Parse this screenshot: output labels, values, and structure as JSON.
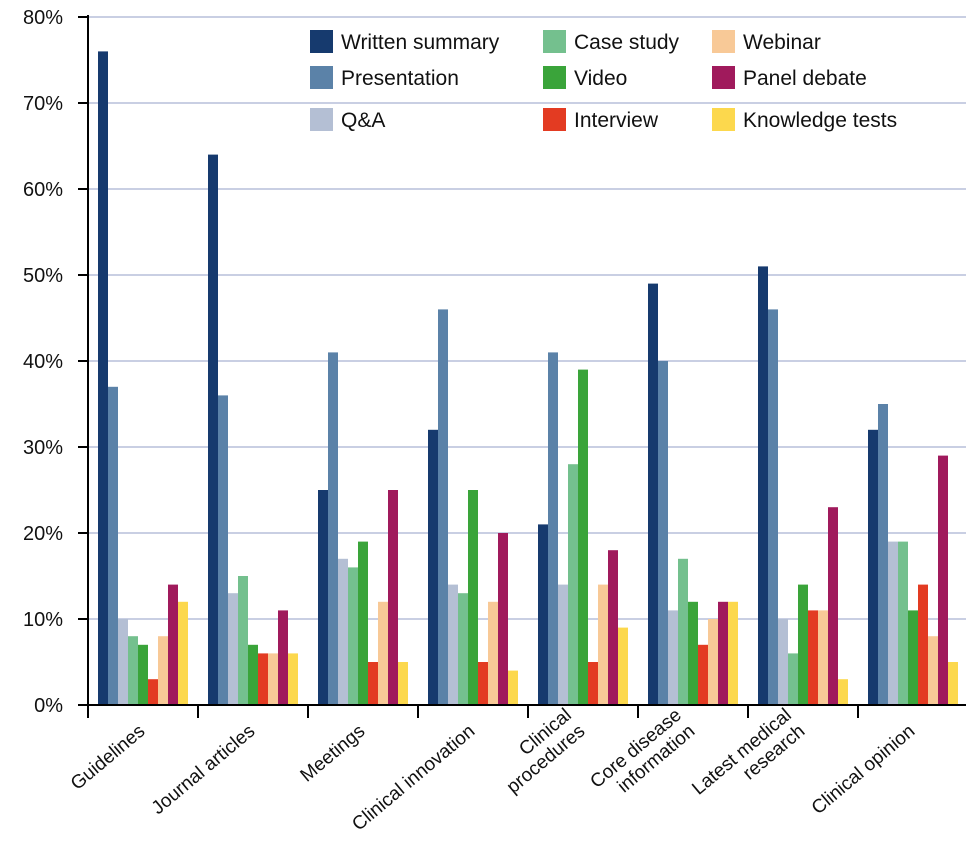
{
  "chart_data": {
    "type": "bar",
    "categories": [
      [
        "Guidelines"
      ],
      [
        "Journal articles"
      ],
      [
        "Meetings"
      ],
      [
        "Clinical innovation"
      ],
      [
        "Clinical",
        "procedures"
      ],
      [
        "Core disease",
        "information"
      ],
      [
        "Latest medical",
        "research"
      ],
      [
        "Clinical opinion"
      ]
    ],
    "ylim": [
      0,
      80
    ],
    "yticks": [
      0,
      10,
      20,
      30,
      40,
      50,
      60,
      70,
      80
    ],
    "ytick_labels": [
      "0%",
      "10%",
      "20%",
      "30%",
      "40%",
      "50%",
      "60%",
      "70%",
      "80%"
    ],
    "grid": true,
    "legend_position": "top-right",
    "series": [
      {
        "name": "Written summary",
        "color": "#163a6e",
        "values": [
          76,
          64,
          25,
          32,
          21,
          49,
          51,
          32
        ]
      },
      {
        "name": "Presentation",
        "color": "#5b82a8",
        "values": [
          37,
          36,
          41,
          46,
          41,
          40,
          46,
          35
        ]
      },
      {
        "name": "Q&A",
        "color": "#b4bfd4",
        "values": [
          10,
          13,
          17,
          14,
          14,
          11,
          10,
          19
        ]
      },
      {
        "name": "Case study",
        "color": "#74c08e",
        "values": [
          8,
          15,
          16,
          13,
          28,
          17,
          6,
          19
        ]
      },
      {
        "name": "Video",
        "color": "#3aa43a",
        "values": [
          7,
          7,
          19,
          25,
          39,
          12,
          14,
          11
        ]
      },
      {
        "name": "Interview",
        "color": "#e33b22",
        "values": [
          3,
          6,
          5,
          5,
          5,
          7,
          11,
          14
        ]
      },
      {
        "name": "Webinar",
        "color": "#f8c997",
        "values": [
          8,
          6,
          12,
          12,
          14,
          10,
          11,
          8
        ]
      },
      {
        "name": "Panel debate",
        "color": "#a01a5c",
        "values": [
          14,
          11,
          25,
          20,
          18,
          12,
          23,
          29
        ]
      },
      {
        "name": "Knowledge tests",
        "color": "#fcd84d",
        "values": [
          12,
          6,
          5,
          4,
          9,
          12,
          3,
          5
        ]
      }
    ],
    "legend_order": [
      [
        "Written summary",
        "Case study",
        "Webinar"
      ],
      [
        "Presentation",
        "Video",
        "Panel debate"
      ],
      [
        "Q&A",
        "Interview",
        "Knowledge tests"
      ]
    ]
  }
}
